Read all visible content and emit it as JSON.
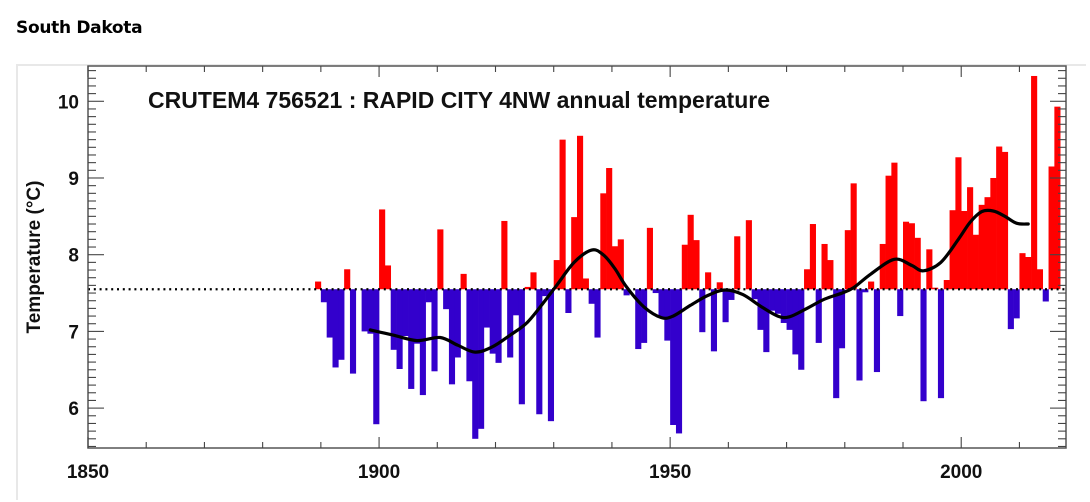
{
  "page": {
    "heading": "South Dakota"
  },
  "chart_data": {
    "type": "bar",
    "title": "CRUTEM4 756521 : RAPID CITY 4NW annual temperature",
    "xlabel": "",
    "ylabel": "Temperature (°C)",
    "xlim": [
      1850,
      2018
    ],
    "ylim": [
      5.48,
      10.46
    ],
    "x_ticks": [
      1850,
      1900,
      1950,
      2000
    ],
    "x_minor_step": 10,
    "y_ticks": [
      6,
      7,
      8,
      9,
      10
    ],
    "y_minor_step": 0.1,
    "baseline": 7.55,
    "baseline_style": "dotted",
    "grid": false,
    "legend": "none",
    "colors": {
      "above": "#ff0000",
      "below": "#3300cc",
      "smooth": "#000000",
      "baseline": "#000000"
    },
    "series": [
      {
        "name": "annual temperature",
        "x": [
          1889,
          1890,
          1891,
          1892,
          1893,
          1894,
          1895,
          1897,
          1898,
          1899,
          1900,
          1901,
          1902,
          1903,
          1904,
          1905,
          1906,
          1907,
          1908,
          1909,
          1910,
          1911,
          1912,
          1913,
          1914,
          1915,
          1916,
          1917,
          1918,
          1919,
          1920,
          1921,
          1922,
          1923,
          1924,
          1925,
          1926,
          1927,
          1928,
          1929,
          1930,
          1931,
          1932,
          1933,
          1934,
          1935,
          1936,
          1937,
          1938,
          1939,
          1940,
          1941,
          1942,
          1944,
          1945,
          1946,
          1947,
          1948,
          1949,
          1950,
          1951,
          1952,
          1953,
          1954,
          1955,
          1956,
          1957,
          1958,
          1959,
          1960,
          1961,
          1963,
          1964,
          1965,
          1966,
          1967,
          1968,
          1969,
          1970,
          1971,
          1972,
          1973,
          1974,
          1975,
          1976,
          1977,
          1978,
          1979,
          1980,
          1981,
          1982,
          1983,
          1984,
          1985,
          1986,
          1987,
          1988,
          1989,
          1990,
          1991,
          1992,
          1993,
          1994,
          1995,
          1996,
          1997,
          1998,
          1999,
          2000,
          2001,
          2002,
          2003,
          2004,
          2005,
          2006,
          2007,
          2008,
          2009,
          2010,
          2011,
          2012,
          2013,
          2014,
          2015,
          2016
        ],
        "values": [
          7.65,
          7.38,
          6.92,
          6.53,
          6.63,
          7.81,
          6.45,
          7.0,
          6.97,
          5.79,
          8.59,
          7.86,
          6.76,
          6.51,
          6.94,
          6.25,
          6.84,
          6.17,
          7.38,
          6.48,
          8.33,
          7.29,
          6.31,
          6.66,
          7.75,
          6.35,
          5.6,
          5.73,
          7.05,
          6.71,
          6.59,
          8.44,
          6.66,
          7.21,
          6.05,
          7.58,
          7.77,
          5.92,
          7.46,
          5.83,
          7.93,
          9.5,
          7.24,
          8.49,
          9.55,
          7.69,
          7.36,
          6.92,
          8.8,
          9.13,
          8.11,
          8.2,
          7.47,
          6.77,
          6.85,
          8.35,
          7.5,
          7.18,
          6.88,
          5.78,
          5.67,
          8.13,
          8.52,
          8.19,
          6.99,
          7.77,
          6.74,
          7.64,
          7.12,
          7.41,
          8.24,
          8.45,
          7.42,
          7.02,
          6.73,
          7.27,
          7.23,
          7.11,
          7.02,
          6.7,
          6.5,
          7.81,
          8.4,
          6.85,
          8.14,
          7.93,
          6.13,
          6.78,
          8.32,
          8.93,
          6.36,
          7.51,
          7.65,
          6.47,
          8.14,
          9.03,
          9.2,
          7.2,
          8.43,
          8.41,
          8.22,
          6.09,
          8.07,
          7.57,
          6.13,
          7.67,
          8.58,
          9.27,
          8.57,
          8.88,
          8.26,
          8.65,
          8.75,
          9.0,
          9.41,
          9.34,
          7.03,
          7.17,
          8.02,
          7.97,
          10.33,
          7.81,
          7.39,
          9.15,
          9.93
        ]
      },
      {
        "name": "smoothed",
        "type": "line",
        "x": [
          1898,
          1902,
          1906,
          1910,
          1913,
          1916,
          1919,
          1922,
          1925,
          1928,
          1930,
          1933,
          1936,
          1938,
          1940,
          1942,
          1945,
          1948,
          1950,
          1953,
          1956,
          1959,
          1962,
          1965,
          1968,
          1970,
          1973,
          1976,
          1979,
          1981,
          1984,
          1988,
          1991,
          1993,
          1996,
          1999,
          2001,
          2003,
          2005,
          2007,
          2009,
          2011
        ],
        "values": [
          7.02,
          6.95,
          6.88,
          6.92,
          6.82,
          6.73,
          6.8,
          6.95,
          7.12,
          7.4,
          7.6,
          7.9,
          8.06,
          8.0,
          7.82,
          7.58,
          7.32,
          7.18,
          7.2,
          7.34,
          7.47,
          7.54,
          7.48,
          7.33,
          7.2,
          7.19,
          7.3,
          7.42,
          7.5,
          7.57,
          7.75,
          7.94,
          7.86,
          7.79,
          7.9,
          8.2,
          8.42,
          8.56,
          8.57,
          8.5,
          8.41,
          8.4
        ]
      }
    ]
  }
}
